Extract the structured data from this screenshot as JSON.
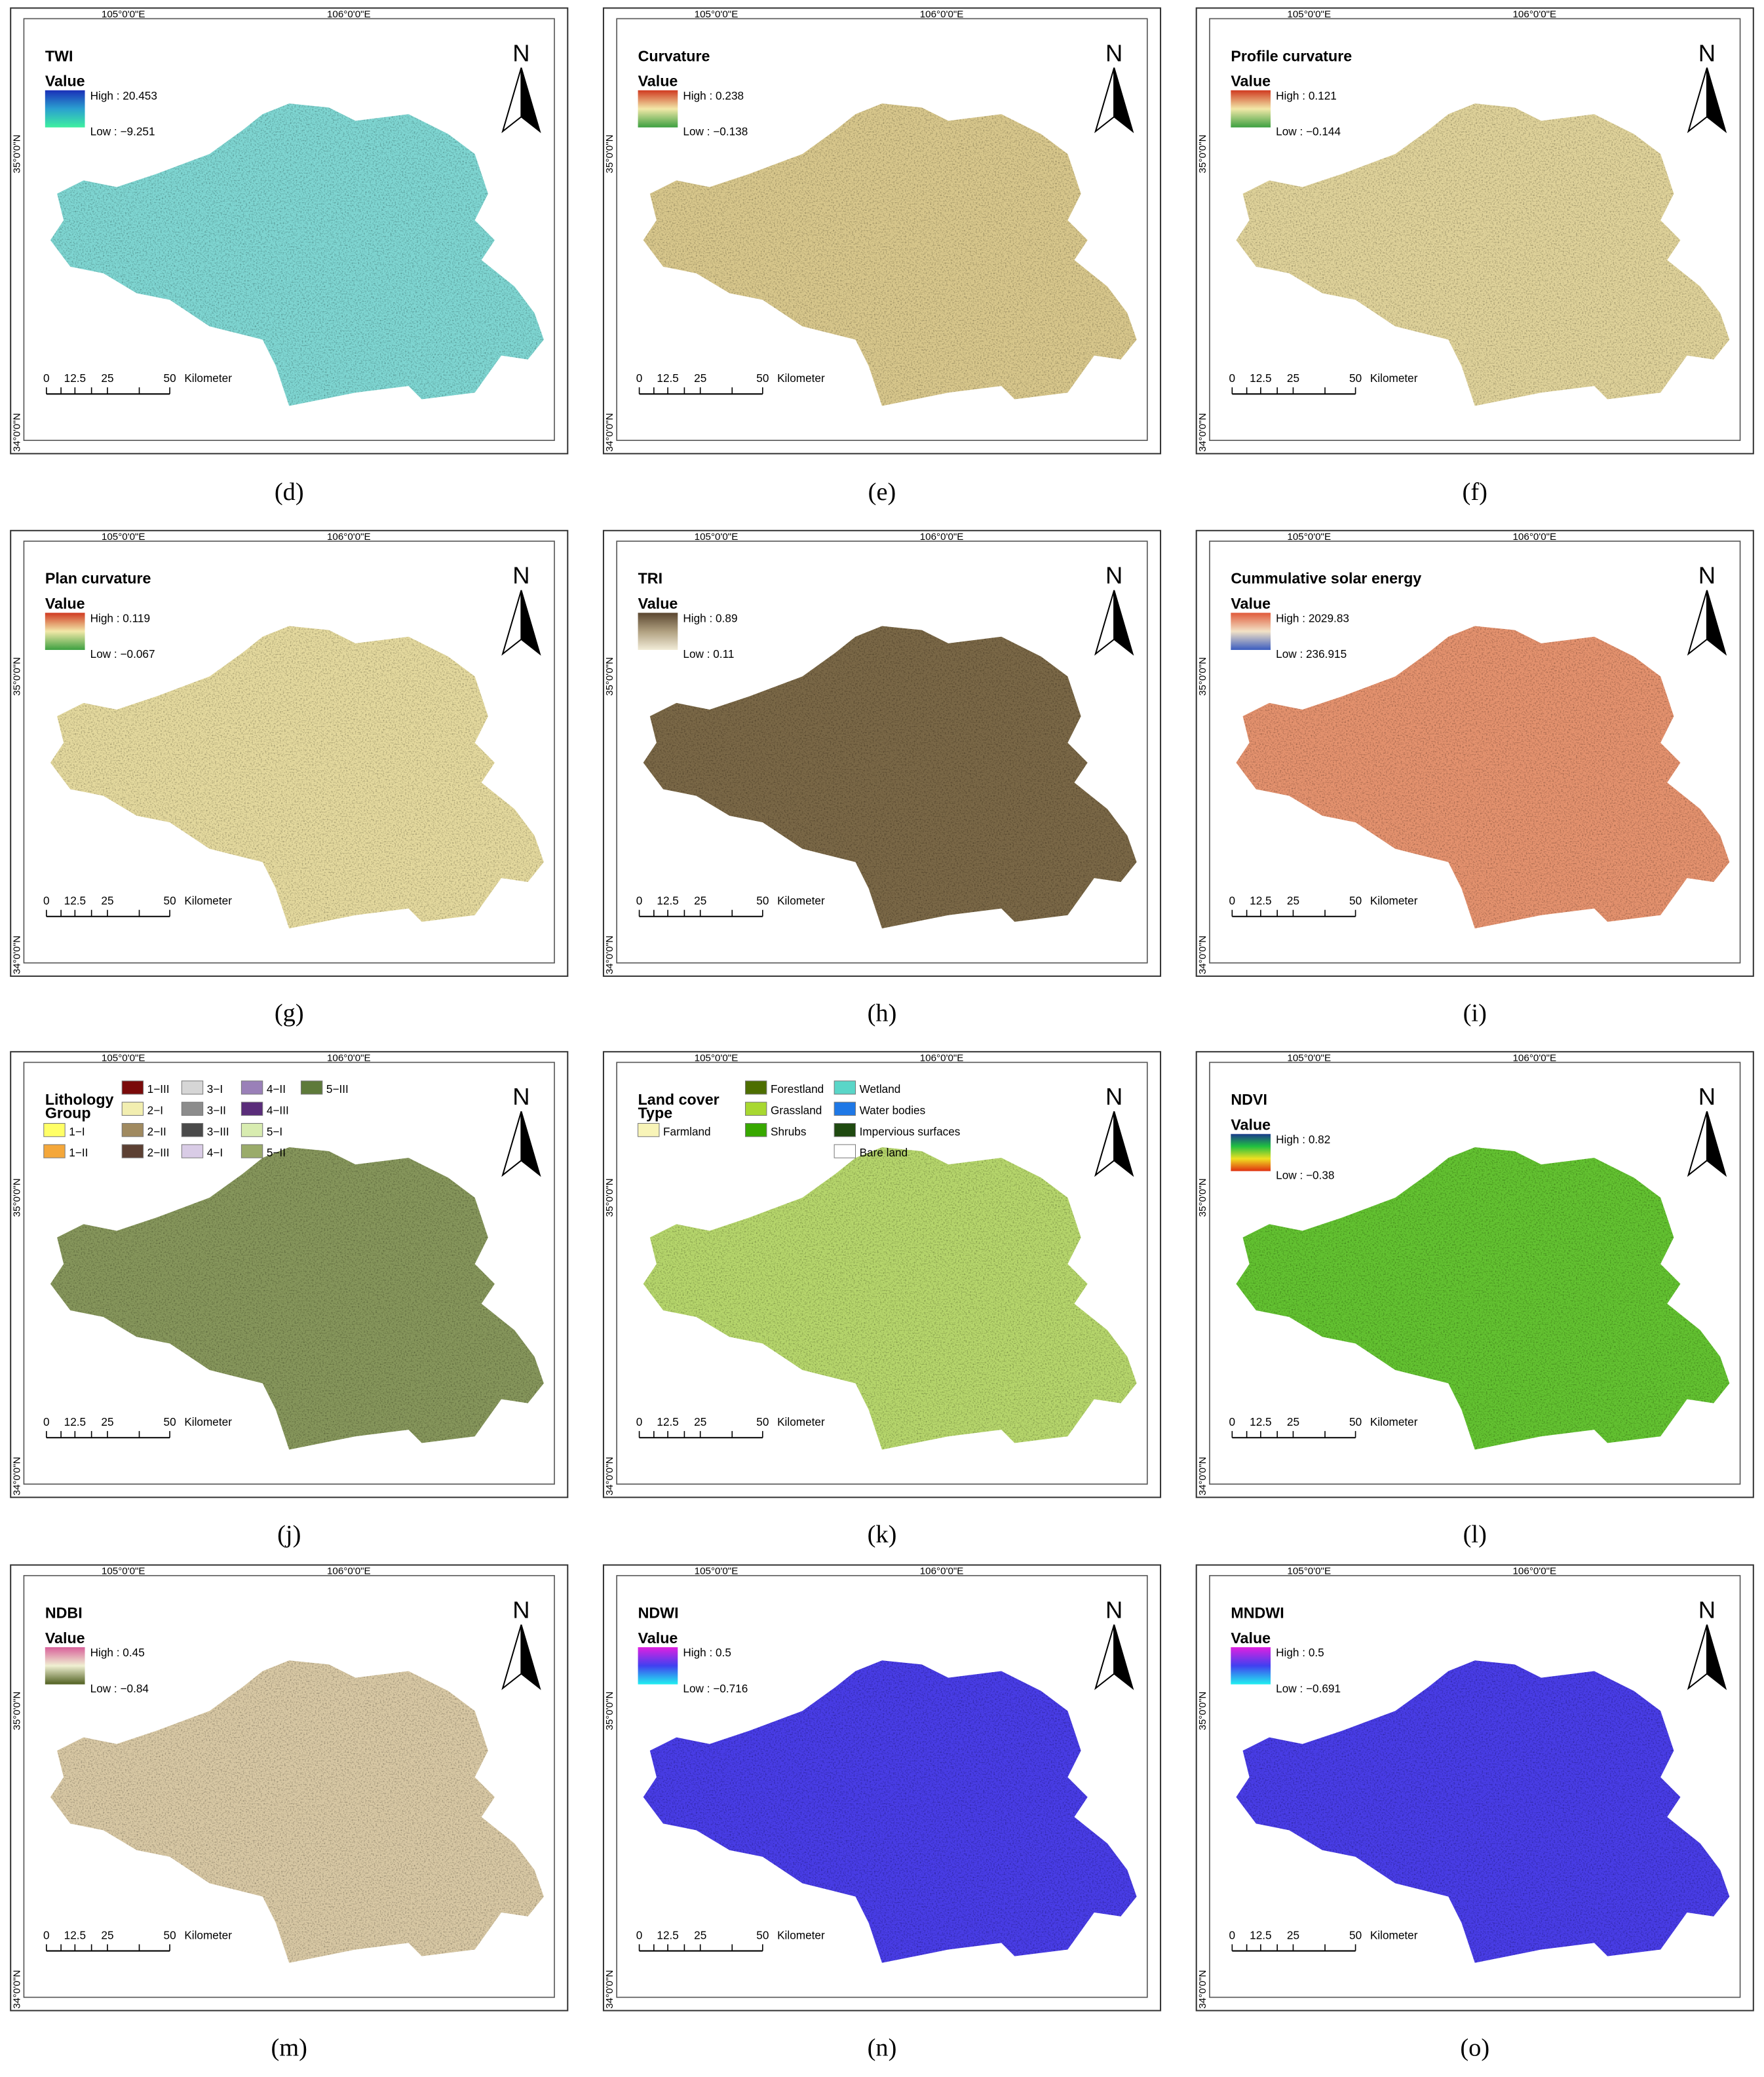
{
  "panels": [
    {
      "caption": "(d)",
      "title": "TWI",
      "value_label": "Value",
      "high": "High : 20.453",
      "low": "Low : −9.251",
      "ramp": [
        "#1a2fb8",
        "#2aa0d0",
        "#3ef0a0"
      ],
      "map_color": "#7fd6d2",
      "north": "N",
      "lon_labels": [
        "105°0'0\"E",
        "106°0'0\"E"
      ],
      "lat_labels": [
        "35°0'0\"N",
        "34°0'0\"N"
      ],
      "scale_labels": [
        "0",
        "12.5",
        "25",
        "50",
        "Kilometer"
      ]
    },
    {
      "caption": "(e)",
      "title": "Curvature",
      "value_label": "Value",
      "high": "High : 0.238",
      "low": "Low : −0.138",
      "ramp": [
        "#d03a20",
        "#f2e8a8",
        "#3ca040"
      ],
      "map_color": "#d8c78c",
      "north": "N",
      "lon_labels": [
        "105°0'0\"E",
        "106°0'0\"E"
      ],
      "lat_labels": [
        "35°0'0\"N",
        "34°0'0\"N"
      ],
      "scale_labels": [
        "0",
        "12.5",
        "25",
        "50",
        "Kilometer"
      ]
    },
    {
      "caption": "(f)",
      "title": "Profile curvature",
      "value_label": "Value",
      "high": "High : 0.121",
      "low": "Low : −0.144",
      "ramp": [
        "#d03a20",
        "#f2e8a8",
        "#3ca040"
      ],
      "map_color": "#dfd29a",
      "north": "N",
      "lon_labels": [
        "105°0'0\"E",
        "106°0'0\"E"
      ],
      "lat_labels": [
        "35°0'0\"N",
        "34°0'0\"N"
      ],
      "scale_labels": [
        "0",
        "12.5",
        "25",
        "50",
        "Kilometer"
      ]
    },
    {
      "caption": "(g)",
      "title": "Plan curvature",
      "value_label": "Value",
      "high": "High : 0.119",
      "low": "Low : −0.067",
      "ramp": [
        "#d03a20",
        "#f2e8a8",
        "#3ca040"
      ],
      "map_color": "#e4d99e",
      "north": "N",
      "lon_labels": [
        "105°0'0\"E",
        "106°0'0\"E"
      ],
      "lat_labels": [
        "35°0'0\"N",
        "34°0'0\"N"
      ],
      "scale_labels": [
        "0",
        "12.5",
        "25",
        "50",
        "Kilometer"
      ]
    },
    {
      "caption": "(h)",
      "title": "TRI",
      "value_label": "Value",
      "high": "High : 0.89",
      "low": "Low : 0.11",
      "ramp": [
        "#5a4630",
        "#b0a080",
        "#f2ecd8"
      ],
      "map_color": "#7a6846",
      "north": "N",
      "lon_labels": [
        "105°0'0\"E",
        "106°0'0\"E"
      ],
      "lat_labels": [
        "35°0'0\"N",
        "34°0'0\"N"
      ],
      "scale_labels": [
        "0",
        "12.5",
        "25",
        "50",
        "Kilometer"
      ]
    },
    {
      "caption": "(i)",
      "title": "Cummulative solar energy",
      "value_label": "Value",
      "high": "High : 2029.83",
      "low": "Low : 236.915",
      "ramp": [
        "#e05a3a",
        "#f2e2c6",
        "#3a5cc0"
      ],
      "map_color": "#e4926e",
      "north": "N",
      "lon_labels": [
        "105°0'0\"E",
        "106°0'0\"E"
      ],
      "lat_labels": [
        "35°0'0\"N",
        "34°0'0\"N"
      ],
      "scale_labels": [
        "0",
        "12.5",
        "25",
        "50",
        "Kilometer"
      ]
    },
    {
      "caption": "(j)",
      "title": "Lithology",
      "subtitle": "Group",
      "legend": {
        "kind": "litho",
        "items": [
          {
            "label": "1−III",
            "color": "#7a0a0a"
          },
          {
            "label": "3−I",
            "color": "#d6d6d6"
          },
          {
            "label": "4−II",
            "color": "#9a80b8"
          },
          {
            "label": "5−III",
            "color": "#5e7a3a"
          },
          {
            "label": "2−I",
            "color": "#f2eeb0"
          },
          {
            "label": "3−II",
            "color": "#8c8c8c"
          },
          {
            "label": "4−III",
            "color": "#5a2d7a"
          },
          {
            "label": "1−I",
            "color": "#ffff66"
          },
          {
            "label": "2−II",
            "color": "#a08a60"
          },
          {
            "label": "3−III",
            "color": "#4a4a4a"
          },
          {
            "label": "5−I",
            "color": "#d8ecb0"
          },
          {
            "label": "1−II",
            "color": "#f4a73a"
          },
          {
            "label": "2−III",
            "color": "#5c4033"
          },
          {
            "label": "4−I",
            "color": "#d9cce6"
          },
          {
            "label": "5−II",
            "color": "#9aab6a"
          }
        ]
      },
      "map_color": "#86965c",
      "north": "N",
      "lon_labels": [
        "105°0'0\"E",
        "106°0'0\"E"
      ],
      "lat_labels": [
        "35°0'0\"N",
        "34°0'0\"N"
      ],
      "scale_labels": [
        "0",
        "12.5",
        "25",
        "50",
        "Kilometer"
      ]
    },
    {
      "caption": "(k)",
      "title": "Land cover",
      "subtitle": "Type",
      "legend": {
        "kind": "land",
        "items": [
          {
            "label": "Forestland",
            "color": "#4d6e00"
          },
          {
            "label": "Wetland",
            "color": "#5ad6c8"
          },
          {
            "label": "Grassland",
            "color": "#a8d830"
          },
          {
            "label": "Water bodies",
            "color": "#1e78e6"
          },
          {
            "label": "Farmland",
            "color": "#f8f4b8"
          },
          {
            "label": "Shrubs",
            "color": "#38a800"
          },
          {
            "label": "Impervious surfaces",
            "color": "#1f4a10"
          },
          {
            "label": "Bare land",
            "color": "#ffffff"
          }
        ]
      },
      "map_color": "#b6d66c",
      "north": "N",
      "lon_labels": [
        "105°0'0\"E",
        "106°0'0\"E"
      ],
      "lat_labels": [
        "35°0'0\"N",
        "34°0'0\"N"
      ],
      "scale_labels": [
        "0",
        "12.5",
        "25",
        "50",
        "Kilometer"
      ]
    },
    {
      "caption": "(l)",
      "title": "NDVI",
      "value_label": "Value",
      "high": "High : 0.82",
      "low": "Low : −0.38",
      "ramp": [
        "#1a3a8c",
        "#20c040",
        "#f0e020",
        "#e03010"
      ],
      "map_color": "#64c232",
      "north": "N",
      "lon_labels": [
        "105°0'0\"E",
        "106°0'0\"E"
      ],
      "lat_labels": [
        "35°0'0\"N",
        "34°0'0\"N"
      ],
      "scale_labels": [
        "0",
        "12.5",
        "25",
        "50",
        "Kilometer"
      ]
    },
    {
      "caption": "(m)",
      "title": "NDBI",
      "value_label": "Value",
      "high": "High : 0.45",
      "low": "Low : −0.84",
      "ramp": [
        "#d8609a",
        "#f0f0d2",
        "#506020"
      ],
      "map_color": "#d8c8a4",
      "north": "N",
      "lon_labels": [
        "105°0'0\"E",
        "106°0'0\"E"
      ],
      "lat_labels": [
        "35°0'0\"N",
        "34°0'0\"N"
      ],
      "scale_labels": [
        "0",
        "12.5",
        "25",
        "50",
        "Kilometer"
      ]
    },
    {
      "caption": "(n)",
      "title": "NDWI",
      "value_label": "Value",
      "high": "High : 0.5",
      "low": "Low : −0.716",
      "ramp": [
        "#e020e0",
        "#4040f0",
        "#20f0f0"
      ],
      "map_color": "#4a3ce6",
      "north": "N",
      "lon_labels": [
        "105°0'0\"E",
        "106°0'0\"E"
      ],
      "lat_labels": [
        "35°0'0\"N",
        "34°0'0\"N"
      ],
      "scale_labels": [
        "0",
        "12.5",
        "25",
        "50",
        "Kilometer"
      ]
    },
    {
      "caption": "(o)",
      "title": "MNDWI",
      "value_label": "Value",
      "high": "High : 0.5",
      "low": "Low : −0.691",
      "ramp": [
        "#e020e0",
        "#4040f0",
        "#20f0f0"
      ],
      "map_color": "#4a3ce6",
      "north": "N",
      "lon_labels": [
        "105°0'0\"E",
        "106°0'0\"E"
      ],
      "lat_labels": [
        "35°0'0\"N",
        "34°0'0\"N"
      ],
      "scale_labels": [
        "0",
        "12.5",
        "25",
        "50",
        "Kilometer"
      ]
    }
  ]
}
